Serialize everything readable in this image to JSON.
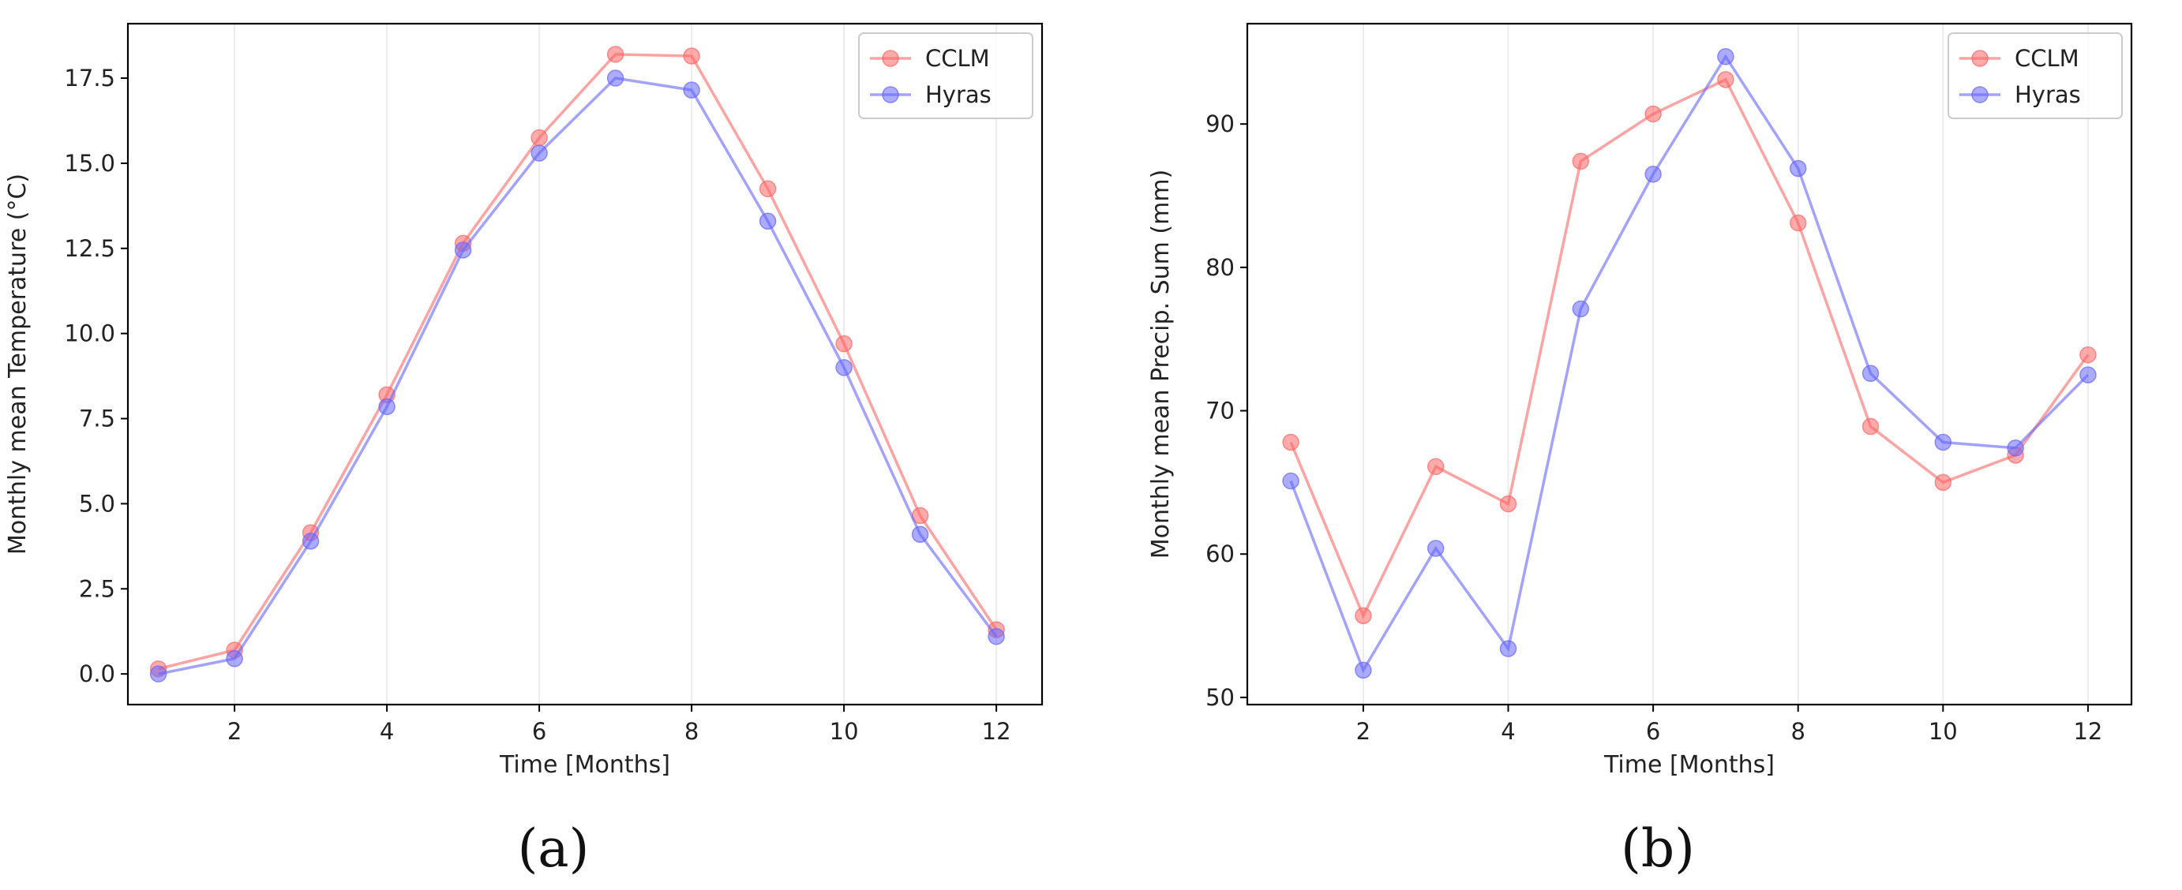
{
  "chart_data": [
    {
      "type": "line",
      "panel_label": "(a)",
      "title": "",
      "xlabel": "Time [Months]",
      "ylabel": "Monthly mean Temperature (°C)",
      "x": [
        1,
        2,
        3,
        4,
        5,
        6,
        7,
        8,
        9,
        10,
        11,
        12
      ],
      "xlim": [
        0.6,
        12.6
      ],
      "ylim": [
        -0.9,
        19.1
      ],
      "xticks": [
        2,
        4,
        6,
        8,
        10,
        12
      ],
      "xtick_labels": [
        "2",
        "4",
        "6",
        "8",
        "10",
        "12"
      ],
      "yticks": [
        0,
        2.5,
        5,
        7.5,
        10,
        12.5,
        15,
        17.5
      ],
      "ytick_labels": [
        "0.0",
        "2.5",
        "5.0",
        "7.5",
        "10.0",
        "12.5",
        "15.0",
        "17.5"
      ],
      "grid": "vertical",
      "legend": "top-right",
      "series": [
        {
          "name": "CCLM",
          "color": "#ff6666",
          "values": [
            0.15,
            0.7,
            4.15,
            8.2,
            12.65,
            15.75,
            18.2,
            18.15,
            14.25,
            9.7,
            4.65,
            1.3
          ]
        },
        {
          "name": "Hyras",
          "color": "#6666ff",
          "values": [
            0.0,
            0.45,
            3.9,
            7.85,
            12.45,
            15.3,
            17.5,
            17.15,
            13.3,
            9.0,
            4.1,
            1.1
          ]
        }
      ]
    },
    {
      "type": "line",
      "panel_label": "(b)",
      "title": "",
      "xlabel": "Time [Months]",
      "ylabel": "Monthly mean Precip. Sum (mm)",
      "x": [
        1,
        2,
        3,
        4,
        5,
        6,
        7,
        8,
        9,
        10,
        11,
        12
      ],
      "xlim": [
        0.4,
        12.6
      ],
      "ylim": [
        49.5,
        97.0
      ],
      "xticks": [
        2,
        4,
        6,
        8,
        10,
        12
      ],
      "xtick_labels": [
        "2",
        "4",
        "6",
        "8",
        "10",
        "12"
      ],
      "yticks": [
        50,
        60,
        70,
        80,
        90
      ],
      "ytick_labels": [
        "50",
        "60",
        "70",
        "80",
        "90"
      ],
      "grid": "vertical",
      "legend": "top-right",
      "series": [
        {
          "name": "CCLM",
          "color": "#ff6666",
          "values": [
            67.8,
            55.7,
            66.1,
            63.5,
            87.4,
            90.7,
            93.1,
            83.1,
            68.9,
            65.0,
            66.9,
            73.9
          ]
        },
        {
          "name": "Hyras",
          "color": "#6666ff",
          "values": [
            65.1,
            51.9,
            60.4,
            53.4,
            77.1,
            86.5,
            94.7,
            86.9,
            72.6,
            67.8,
            67.4,
            72.5
          ]
        }
      ]
    }
  ]
}
